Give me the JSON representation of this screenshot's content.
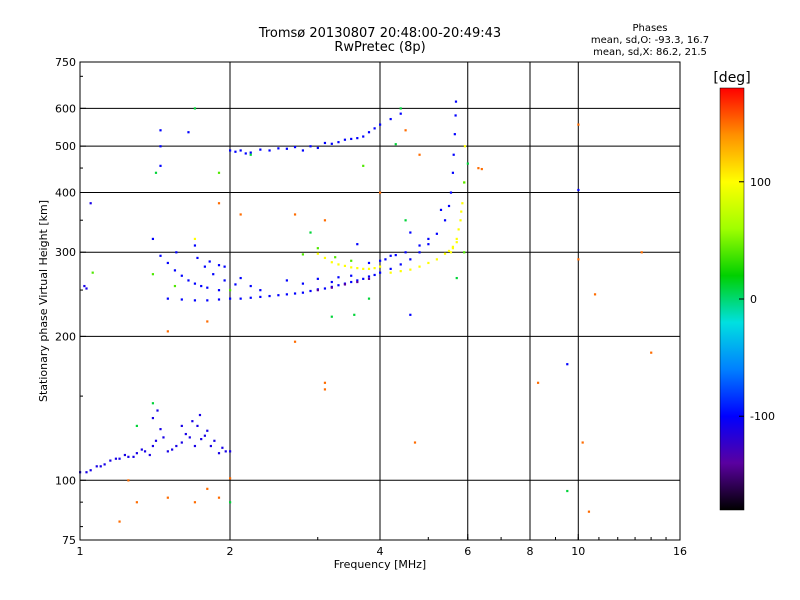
{
  "title_line1": "Tromsø 20130807 20:48:00-20:49:43",
  "title_line2": "RwPretec (8p)",
  "phase_info": {
    "header": "Phases",
    "line_o": "mean, sd,O: -93.3, 16.7",
    "line_x": "mean, sd,X: 86.2, 21.5"
  },
  "chart_data": {
    "type": "scatter",
    "xlabel": "Frequency [MHz]",
    "ylabel": "Stationary phase Virtual Height [km]",
    "x_scale": "log",
    "y_scale": "log",
    "xlim": [
      1,
      16
    ],
    "ylim": [
      75,
      750
    ],
    "x_ticks": [
      1,
      2,
      4,
      6,
      8,
      10,
      16
    ],
    "y_ticks": [
      75,
      100,
      200,
      300,
      400,
      500,
      600,
      750
    ],
    "grid_x": [
      2,
      4,
      6,
      8,
      10
    ],
    "grid_y": [
      100,
      200,
      300,
      400,
      500,
      600
    ],
    "colorbar": {
      "label": "[deg]",
      "min": -180,
      "max": 180,
      "ticks": [
        100,
        0,
        -100
      ],
      "colors": [
        "#000000",
        "#5a00a0",
        "#0000ff",
        "#0080ff",
        "#00e0e0",
        "#00d000",
        "#a0ff00",
        "#ffff00",
        "#ff9000",
        "#ff0000"
      ]
    },
    "series": [
      {
        "phase": -110,
        "points": [
          [
            1.0,
            104
          ],
          [
            1.03,
            104
          ],
          [
            1.05,
            105
          ],
          [
            1.08,
            107
          ],
          [
            1.1,
            107
          ],
          [
            1.12,
            108
          ],
          [
            1.15,
            110
          ],
          [
            1.18,
            111
          ],
          [
            1.2,
            111
          ],
          [
            1.23,
            113
          ],
          [
            1.25,
            112
          ],
          [
            1.28,
            112
          ],
          [
            1.3,
            114
          ],
          [
            1.33,
            116
          ],
          [
            1.35,
            115
          ],
          [
            1.38,
            113
          ],
          [
            1.4,
            118
          ],
          [
            1.42,
            121
          ],
          [
            1.45,
            128
          ],
          [
            1.47,
            123
          ],
          [
            1.5,
            115
          ],
          [
            1.53,
            116
          ],
          [
            1.56,
            118
          ],
          [
            1.6,
            120
          ],
          [
            1.63,
            125
          ],
          [
            1.66,
            123
          ],
          [
            1.7,
            118
          ],
          [
            1.72,
            130
          ],
          [
            1.75,
            122
          ],
          [
            1.78,
            124
          ],
          [
            1.8,
            127
          ],
          [
            1.83,
            118
          ],
          [
            1.86,
            121
          ],
          [
            1.9,
            114
          ],
          [
            1.93,
            117
          ],
          [
            1.96,
            115
          ],
          [
            2.0,
            115
          ],
          [
            1.4,
            135
          ],
          [
            1.43,
            140
          ],
          [
            1.6,
            130
          ],
          [
            1.68,
            133
          ],
          [
            1.74,
            137
          ],
          [
            1.02,
            255
          ],
          [
            1.03,
            252
          ],
          [
            1.05,
            380
          ]
        ]
      },
      {
        "phase": -100,
        "points": [
          [
            1.5,
            240
          ],
          [
            1.6,
            239
          ],
          [
            1.7,
            238
          ],
          [
            1.8,
            238
          ],
          [
            1.9,
            239
          ],
          [
            2.0,
            240
          ],
          [
            2.1,
            240
          ],
          [
            2.2,
            241
          ],
          [
            2.3,
            242
          ],
          [
            2.4,
            243
          ],
          [
            2.5,
            244
          ],
          [
            2.6,
            245
          ],
          [
            2.7,
            246
          ],
          [
            2.8,
            247
          ],
          [
            2.9,
            249
          ],
          [
            3.0,
            251
          ],
          [
            3.1,
            252
          ],
          [
            3.2,
            254
          ],
          [
            3.3,
            256
          ],
          [
            3.4,
            258
          ],
          [
            3.5,
            260
          ],
          [
            3.6,
            262
          ],
          [
            3.7,
            264
          ],
          [
            3.8,
            267
          ],
          [
            3.9,
            269
          ],
          [
            4.0,
            272
          ],
          [
            4.2,
            277
          ],
          [
            4.4,
            283
          ],
          [
            4.6,
            290
          ],
          [
            4.8,
            300
          ],
          [
            5.0,
            312
          ],
          [
            5.2,
            328
          ],
          [
            5.4,
            350
          ],
          [
            5.5,
            375
          ],
          [
            5.55,
            400
          ],
          [
            5.6,
            440
          ],
          [
            5.62,
            480
          ],
          [
            5.65,
            530
          ],
          [
            5.67,
            580
          ],
          [
            5.68,
            620
          ],
          [
            1.4,
            320
          ],
          [
            1.45,
            295
          ],
          [
            1.5,
            285
          ],
          [
            1.55,
            275
          ],
          [
            1.6,
            268
          ],
          [
            1.65,
            262
          ],
          [
            1.7,
            258
          ],
          [
            1.75,
            255
          ],
          [
            1.8,
            253
          ],
          [
            1.85,
            270
          ],
          [
            1.9,
            282
          ],
          [
            1.95,
            262
          ],
          [
            2.05,
            257
          ],
          [
            2.1,
            265
          ],
          [
            2.2,
            255
          ],
          [
            2.3,
            250
          ],
          [
            1.7,
            310
          ],
          [
            1.72,
            292
          ],
          [
            1.78,
            280
          ],
          [
            1.9,
            250
          ],
          [
            1.56,
            300
          ],
          [
            1.82,
            287
          ],
          [
            1.95,
            280
          ],
          [
            2.6,
            262
          ],
          [
            2.8,
            258
          ],
          [
            3.0,
            264
          ],
          [
            3.2,
            260
          ],
          [
            3.3,
            266
          ],
          [
            3.5,
            268
          ],
          [
            3.8,
            285
          ],
          [
            4.0,
            288
          ],
          [
            4.2,
            295
          ],
          [
            4.5,
            300
          ],
          [
            4.8,
            310
          ],
          [
            5.0,
            320
          ],
          [
            4.6,
            330
          ],
          [
            5.3,
            368
          ],
          [
            4.1,
            290
          ],
          [
            4.3,
            296
          ],
          [
            2.0,
            490
          ],
          [
            2.05,
            487
          ],
          [
            2.1,
            490
          ],
          [
            2.15,
            483
          ],
          [
            2.2,
            485
          ],
          [
            2.3,
            492
          ],
          [
            2.4,
            490
          ],
          [
            2.5,
            495
          ],
          [
            2.6,
            494
          ],
          [
            2.7,
            498
          ],
          [
            2.8,
            490
          ],
          [
            2.9,
            500
          ],
          [
            3.0,
            496
          ],
          [
            3.1,
            508
          ],
          [
            3.2,
            506
          ],
          [
            3.3,
            510
          ],
          [
            3.4,
            516
          ],
          [
            3.5,
            518
          ],
          [
            3.6,
            520
          ],
          [
            3.7,
            524
          ],
          [
            3.8,
            535
          ],
          [
            3.9,
            545
          ],
          [
            4.0,
            555
          ],
          [
            4.2,
            570
          ],
          [
            4.4,
            585
          ],
          [
            1.45,
            540
          ],
          [
            1.45,
            500
          ],
          [
            1.45,
            455
          ],
          [
            4.6,
            222
          ],
          [
            9.5,
            175
          ],
          [
            10.0,
            405
          ],
          [
            1.65,
            535
          ],
          [
            3.6,
            312
          ]
        ]
      },
      {
        "phase": -140,
        "points": [
          [
            3.0,
            250
          ],
          [
            3.2,
            253
          ],
          [
            3.4,
            257
          ],
          [
            3.6,
            260
          ],
          [
            3.8,
            264
          ]
        ]
      },
      {
        "phase": 100,
        "points": [
          [
            3.0,
            298
          ],
          [
            3.1,
            292
          ],
          [
            3.2,
            286
          ],
          [
            3.3,
            283
          ],
          [
            3.4,
            281
          ],
          [
            3.5,
            279
          ],
          [
            3.6,
            278
          ],
          [
            3.7,
            277
          ],
          [
            3.8,
            277
          ],
          [
            3.9,
            278
          ],
          [
            4.0,
            280
          ],
          [
            4.2,
            272
          ],
          [
            4.4,
            274
          ],
          [
            4.6,
            276
          ],
          [
            4.8,
            280
          ],
          [
            5.0,
            285
          ],
          [
            5.2,
            290
          ],
          [
            5.4,
            298
          ],
          [
            5.6,
            308
          ],
          [
            5.7,
            320
          ],
          [
            5.75,
            335
          ],
          [
            5.8,
            350
          ],
          [
            5.82,
            365
          ],
          [
            5.85,
            380
          ],
          [
            5.9,
            420
          ],
          [
            5.92,
            500
          ],
          [
            5.55,
            300
          ],
          [
            5.6,
            306
          ],
          [
            5.5,
            302
          ],
          [
            5.7,
            315
          ],
          [
            1.7,
            320
          ]
        ]
      },
      {
        "phase": 40,
        "points": [
          [
            2.8,
            297
          ],
          [
            3.0,
            306
          ],
          [
            3.25,
            293
          ],
          [
            3.5,
            288
          ],
          [
            5.9,
            300
          ],
          [
            1.9,
            440
          ],
          [
            3.7,
            455
          ],
          [
            1.4,
            270
          ],
          [
            1.06,
            272
          ],
          [
            2.0,
            250
          ],
          [
            5.9,
            420
          ],
          [
            1.55,
            255
          ]
        ]
      },
      {
        "phase": 150,
        "points": [
          [
            1.5,
            205
          ],
          [
            1.8,
            215
          ],
          [
            2.1,
            360
          ],
          [
            2.7,
            195
          ],
          [
            3.1,
            160
          ],
          [
            3.1,
            155
          ],
          [
            4.7,
            120
          ],
          [
            6.3,
            450
          ],
          [
            6.4,
            448
          ],
          [
            8.3,
            160
          ],
          [
            10.0,
            290
          ],
          [
            10.2,
            120
          ],
          [
            10.5,
            86
          ],
          [
            13.4,
            300
          ],
          [
            14.0,
            185
          ],
          [
            1.25,
            100
          ],
          [
            1.3,
            90
          ],
          [
            1.5,
            92
          ],
          [
            1.7,
            90
          ],
          [
            1.8,
            96
          ],
          [
            1.9,
            92
          ],
          [
            2.0,
            101
          ],
          [
            4.0,
            400
          ],
          [
            4.5,
            540
          ],
          [
            1.2,
            82
          ],
          [
            3.1,
            350
          ],
          [
            2.7,
            360
          ],
          [
            10.8,
            245
          ],
          [
            10.0,
            555
          ],
          [
            1.9,
            380
          ],
          [
            4.8,
            480
          ]
        ]
      },
      {
        "phase": 10,
        "points": [
          [
            1.3,
            130
          ],
          [
            2.0,
            90
          ],
          [
            1.4,
            145
          ],
          [
            1.7,
            600
          ],
          [
            2.2,
            480
          ],
          [
            4.3,
            505
          ],
          [
            4.5,
            350
          ],
          [
            3.2,
            220
          ],
          [
            6.0,
            460
          ],
          [
            5.7,
            265
          ],
          [
            9.5,
            95
          ],
          [
            4.4,
            600
          ],
          [
            3.8,
            240
          ],
          [
            3.55,
            222
          ],
          [
            2.9,
            330
          ],
          [
            1.42,
            440
          ]
        ]
      }
    ]
  }
}
